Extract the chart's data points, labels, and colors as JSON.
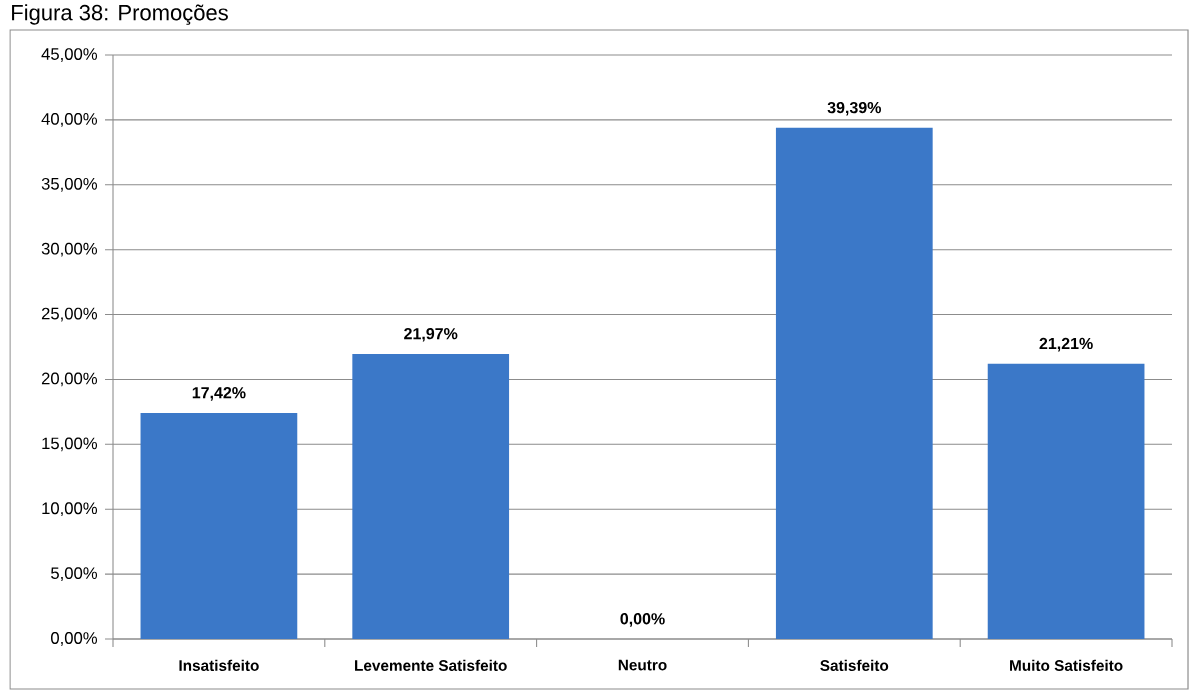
{
  "chart_data": {
    "type": "bar",
    "title": "Figura 38: Promoções",
    "categories": [
      "Insatisfeito",
      "Levemente Satisfeito",
      "Neutro",
      "Satisfeito",
      "Muito Satisfeito"
    ],
    "values": [
      17.42,
      21.97,
      0,
      39.39,
      21.21
    ],
    "value_labels": [
      "17,42%",
      "21,97%",
      "0,00%",
      "39,39%",
      "21,21%"
    ],
    "color": "#3b78c8",
    "ylim": [
      0,
      45
    ],
    "yticks": [
      {
        "value": 0,
        "label": "0,00%"
      },
      {
        "value": 5,
        "label": "5,00%"
      },
      {
        "value": 10,
        "label": "10,00%"
      },
      {
        "value": 15,
        "label": "15,00%"
      },
      {
        "value": 20,
        "label": "20,00%"
      },
      {
        "value": 25,
        "label": "25,00%"
      },
      {
        "value": 30,
        "label": "30,00%"
      },
      {
        "value": 35,
        "label": "35,00%"
      },
      {
        "value": 40,
        "label": "40,00%"
      },
      {
        "value": 45,
        "label": "45,00%"
      }
    ],
    "grid": "y"
  }
}
